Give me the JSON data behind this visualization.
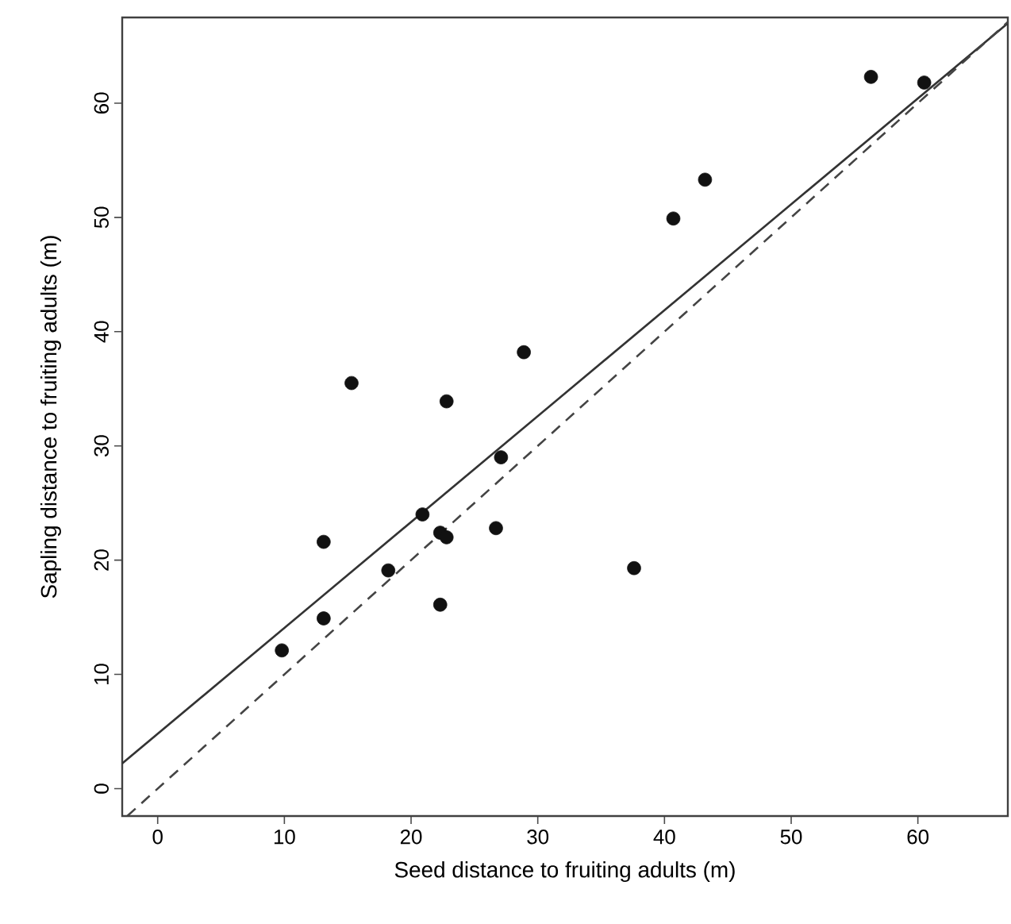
{
  "chart_data": {
    "type": "scatter",
    "xlabel": "Seed distance to fruiting adults (m)",
    "ylabel": "Sapling distance to fruiting adults (m)",
    "xlim": [
      -2.8,
      67.1
    ],
    "ylim": [
      -2.4,
      67.5
    ],
    "xticks": [
      0,
      10,
      20,
      30,
      40,
      50,
      60
    ],
    "yticks": [
      0,
      10,
      20,
      30,
      40,
      50,
      60
    ],
    "grid": false,
    "series": [
      {
        "color": "#111111",
        "x": [
          9.8,
          13.1,
          13.1,
          15.3,
          18.2,
          20.9,
          22.3,
          22.8,
          22.3,
          22.8,
          26.7,
          27.1,
          28.9,
          37.6,
          40.7,
          43.2,
          56.3,
          60.5
        ],
        "values": [
          12.1,
          14.9,
          21.6,
          35.5,
          19.1,
          24.0,
          22.4,
          22.0,
          16.1,
          33.9,
          22.8,
          29.0,
          38.2,
          19.3,
          49.9,
          53.3,
          62.3,
          61.8
        ]
      },
      {
        "type": "line",
        "color": "#333333",
        "line_style": "solid",
        "marker": "none",
        "x": [
          -2.8,
          67.1
        ],
        "values": [
          2.2,
          67.0
        ]
      },
      {
        "type": "line",
        "color": "#444444",
        "line_style": "dashed",
        "marker": "none",
        "x": [
          -2.4,
          67.1
        ],
        "values": [
          -2.4,
          67.1
        ]
      }
    ]
  }
}
